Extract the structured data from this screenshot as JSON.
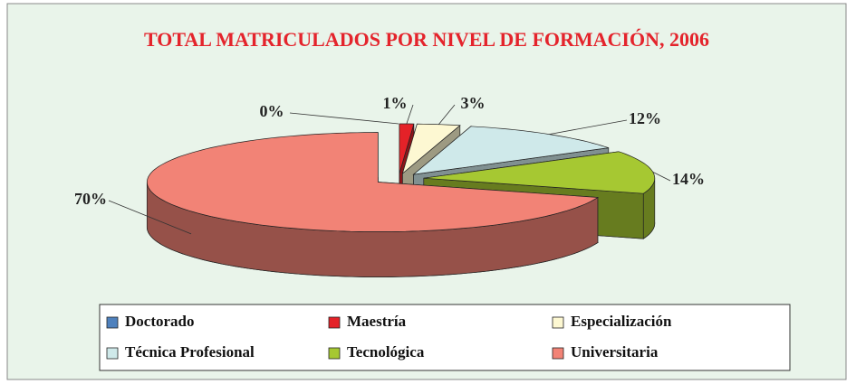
{
  "chart_data": {
    "type": "pie",
    "title": "TOTAL MATRICULADOS POR NIVEL DE FORMACIÓN, 2006",
    "categories": [
      "Doctorado",
      "Maestría",
      "Especialización",
      "Técnica Profesional",
      "Tecnológica",
      "Universitaria"
    ],
    "values": [
      0,
      1,
      3,
      12,
      14,
      70
    ],
    "value_labels": [
      "0%",
      "1%",
      "3%",
      "12%",
      "14%",
      "70%"
    ],
    "colors": [
      "#4f81bd",
      "#e42228",
      "#fdf8d2",
      "#cfe9ea",
      "#a6c832",
      "#f28376"
    ],
    "legend": "bottom"
  }
}
